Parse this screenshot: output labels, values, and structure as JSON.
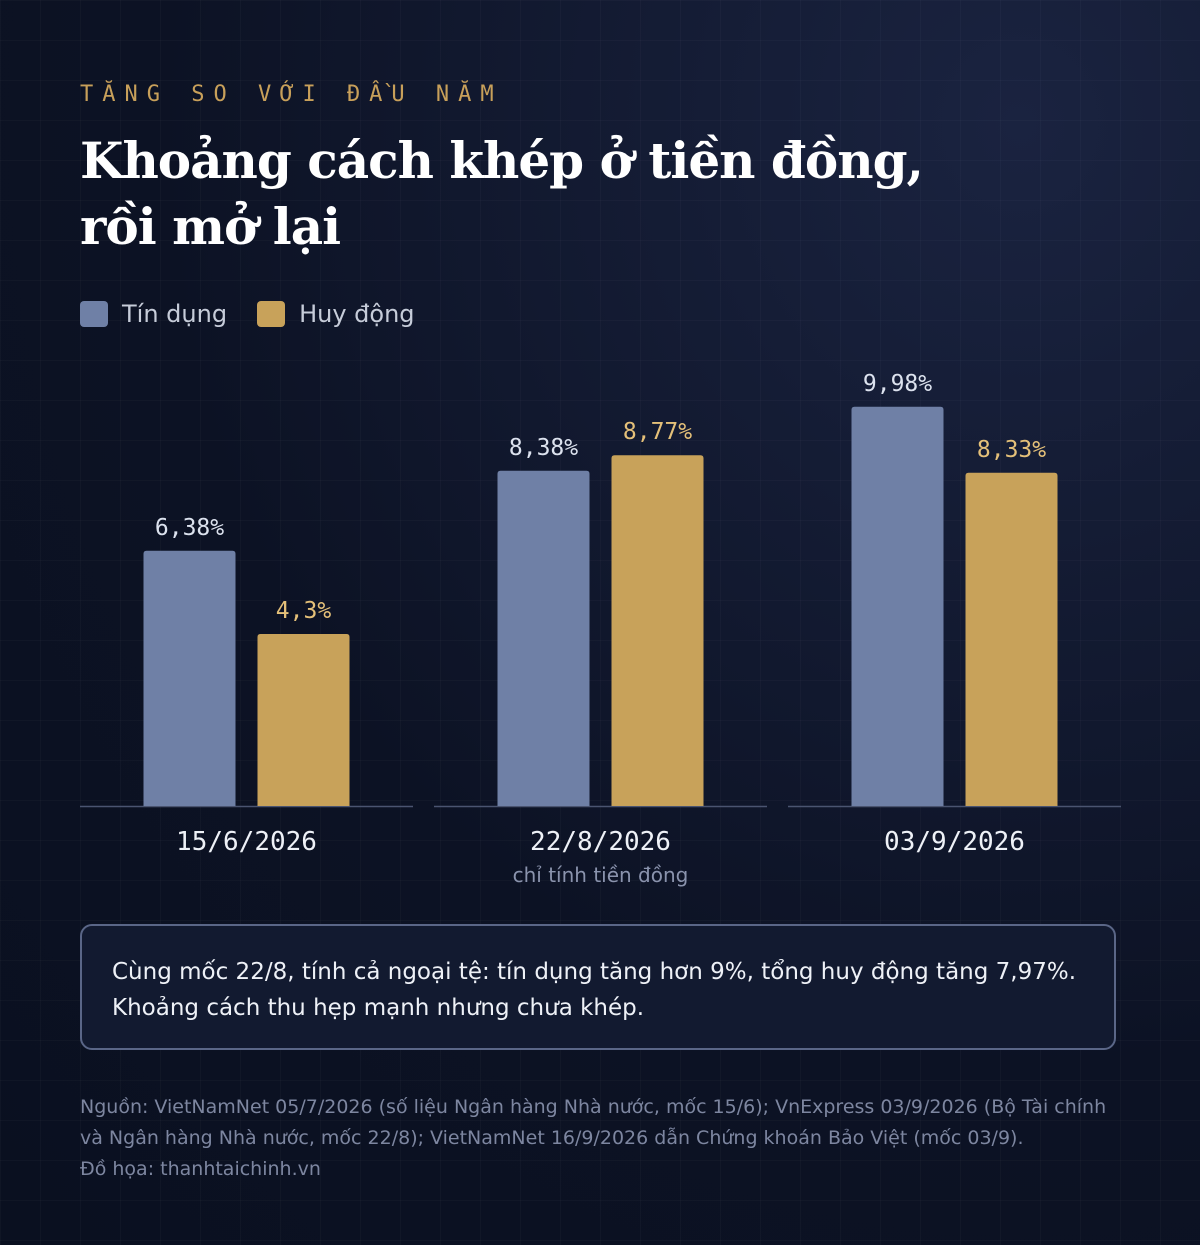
{
  "header": {
    "eyebrow": "TĂNG SO VỚI ĐẦU NĂM",
    "title_line1": "Khoảng cách khép ở tiền đồng,",
    "title_line2": "rồi mở lại"
  },
  "colors": {
    "credit": "#6f80a6",
    "deposit": "#c8a25a",
    "credit_label": "#dce2ee",
    "deposit_label": "#e4c079",
    "axis": "#4a5470"
  },
  "chart_data": {
    "type": "bar",
    "categories": [
      "15/6/2026",
      "22/8/2026",
      "03/9/2026"
    ],
    "category_notes": [
      "",
      "chỉ tính tiền đồng",
      ""
    ],
    "series": [
      {
        "name": "Tín dụng",
        "values": [
          6.38,
          8.38,
          9.98
        ],
        "labels": [
          "6,38%",
          "8,38%",
          "9,98%"
        ]
      },
      {
        "name": "Huy động",
        "values": [
          4.3,
          8.77,
          8.33
        ],
        "labels": [
          "4,3%",
          "8,77%",
          "8,33%"
        ]
      }
    ],
    "ylim": [
      0,
      12.5
    ],
    "legend": "top-left",
    "grid": false
  },
  "note": {
    "line1": "Cùng mốc 22/8, tính cả ngoại tệ: tín dụng tăng hơn 9%, tổng huy động tăng 7,97%.",
    "line2": "Khoảng cách thu hẹp mạnh nhưng chưa khép."
  },
  "footer": {
    "source": "Nguồn: VietNamNet 05/7/2026 (số liệu Ngân hàng Nhà nước, mốc 15/6); VnExpress 03/9/2026 (Bộ Tài chính và Ngân hàng Nhà nước, mốc 22/8); VietNamNet 16/9/2026 dẫn Chứng khoán Bảo Việt (mốc 03/9).",
    "credit": "Đồ họa: thanhtaichinh.vn"
  }
}
